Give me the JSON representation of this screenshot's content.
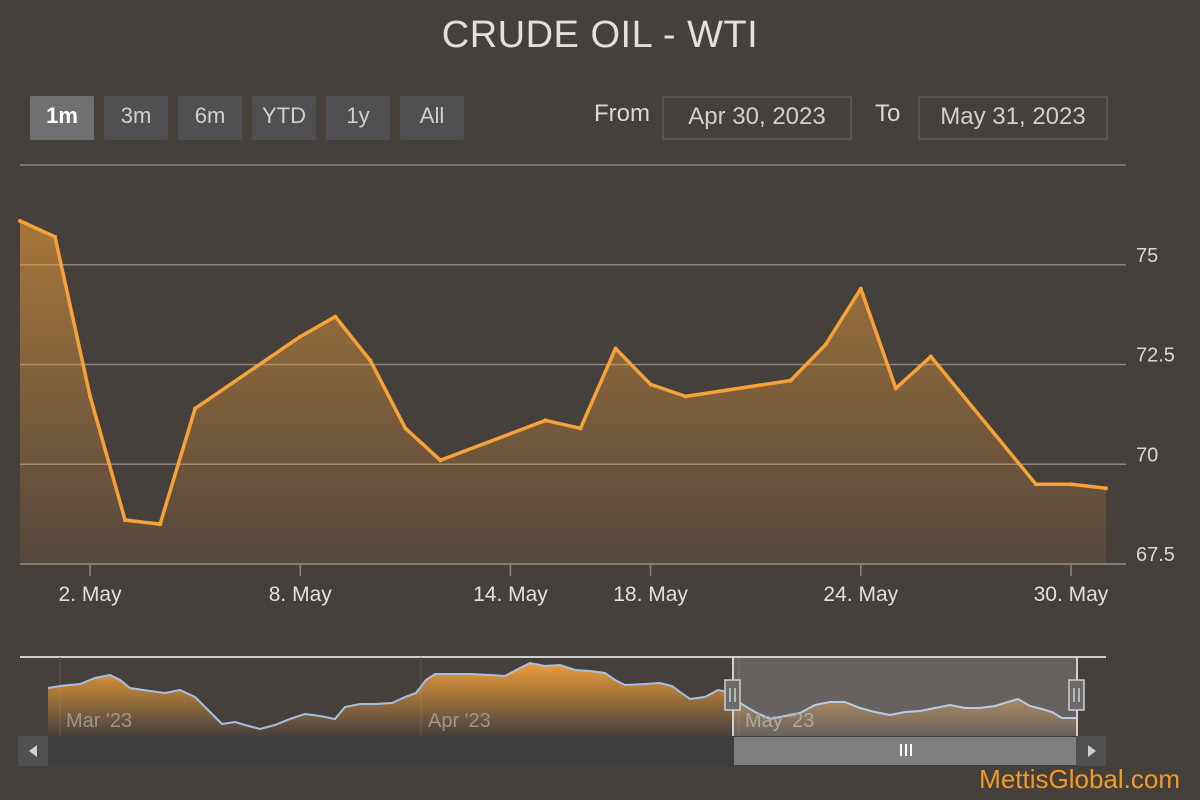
{
  "title": "CRUDE OIL - WTI",
  "range_selector": {
    "buttons": [
      "1m",
      "3m",
      "6m",
      "YTD",
      "1y",
      "All"
    ],
    "selected": "1m",
    "from_label": "From",
    "from_value": "Apr 30, 2023",
    "to_label": "To",
    "to_value": "May 31, 2023"
  },
  "chart_data": {
    "type": "area",
    "title": "CRUDE OIL - WTI",
    "xlabel": "",
    "ylabel": "",
    "x_ticks": [
      "2. May",
      "8. May",
      "14. May",
      "18. May",
      "24. May",
      "30. May"
    ],
    "y_ticks": [
      "67.5",
      "70",
      "72.5",
      "75"
    ],
    "ylim": [
      67.5,
      77.5
    ],
    "grid": true,
    "series": [
      {
        "x": [
          "2023-04-30",
          "2023-05-01",
          "2023-05-02",
          "2023-05-03",
          "2023-05-04",
          "2023-05-05",
          "2023-05-08",
          "2023-05-09",
          "2023-05-10",
          "2023-05-11",
          "2023-05-12",
          "2023-05-15",
          "2023-05-16",
          "2023-05-17",
          "2023-05-18",
          "2023-05-19",
          "2023-05-22",
          "2023-05-23",
          "2023-05-24",
          "2023-05-25",
          "2023-05-26",
          "2023-05-29",
          "2023-05-30",
          "2023-05-31"
        ],
        "values": [
          76.1,
          75.7,
          71.7,
          68.6,
          68.5,
          71.4,
          73.2,
          73.7,
          72.6,
          70.9,
          70.1,
          71.1,
          70.9,
          72.9,
          72.0,
          71.7,
          72.1,
          73.0,
          74.4,
          71.9,
          72.7,
          69.5,
          69.5,
          69.4
        ]
      }
    ],
    "navigator": {
      "labels": [
        "Mar '23",
        "Apr '23",
        "May '23"
      ]
    }
  },
  "colors": {
    "background": "#46403c",
    "line": "#f7a239",
    "grid": "#8a8580",
    "navigator_line": "#a8c0e0"
  },
  "watermark": "MettisGlobal.com"
}
